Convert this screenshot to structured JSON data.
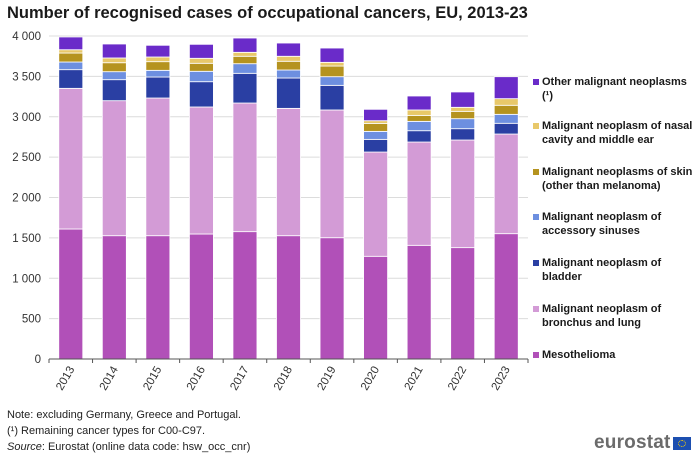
{
  "title": "Number of recognised cases of occupational cancers, EU, 2013-23",
  "notes": {
    "line1": "Note: excluding Germany, Greece and Portugal.",
    "line2": "(¹) Remaining cancer types for C00-C97.",
    "source_label": "Source",
    "source_text": ": Eurostat (online data code: hsw_occ_cnr)"
  },
  "logo": {
    "text": "eurostat",
    "icon": "eu-flag-icon"
  },
  "chart_data": {
    "type": "bar",
    "stacked": true,
    "title": "Number of recognised cases of occupational cancers, EU, 2013-23",
    "xlabel": "",
    "ylabel": "",
    "ylim": [
      0,
      4000
    ],
    "yticks": [
      0,
      500,
      1000,
      1500,
      2000,
      2500,
      3000,
      3500,
      4000
    ],
    "ytick_labels": [
      "0",
      "500",
      "1 000",
      "1 500",
      "2 000",
      "2 500",
      "3 000",
      "3 500",
      "4 000"
    ],
    "grid": true,
    "legend_position": "right",
    "categories": [
      "2013",
      "2014",
      "2015",
      "2016",
      "2017",
      "2018",
      "2019",
      "2020",
      "2021",
      "2022",
      "2023"
    ],
    "series": [
      {
        "name": "Mesothelioma",
        "color": "#b150b8",
        "values": [
          1610,
          1527,
          1527,
          1548,
          1577,
          1527,
          1502,
          1272,
          1408,
          1379,
          1552
        ]
      },
      {
        "name": "Malignant neoplasm of bronchus and lung",
        "color": "#d39bd6",
        "values": [
          1742,
          1672,
          1705,
          1573,
          1593,
          1577,
          1582,
          1291,
          1279,
          1333,
          1234
        ]
      },
      {
        "name": "Malignant neoplasm of bladder",
        "color": "#2a3fa3",
        "values": [
          231,
          260,
          260,
          313,
          368,
          376,
          305,
          157,
          140,
          140,
          133
        ]
      },
      {
        "name": "Malignant neoplasm of accessory sinuses",
        "color": "#6d8fe0",
        "values": [
          95,
          99,
          83,
          129,
          119,
          99,
          107,
          99,
          116,
          124,
          111
        ]
      },
      {
        "name": "Malignant neoplasms of skin (other than melanoma)",
        "color": "#b5931f",
        "values": [
          111,
          111,
          107,
          99,
          92,
          108,
          132,
          99,
          74,
          91,
          112
        ]
      },
      {
        "name": "Malignant neoplasm of nasal cavity and middle ear",
        "color": "#e8c86a",
        "values": [
          41,
          59,
          58,
          62,
          49,
          62,
          46,
          33,
          67,
          50,
          82
        ]
      },
      {
        "name": "Other malignant neoplasms (¹)",
        "color": "#6a2bc9",
        "values": [
          158,
          173,
          145,
          173,
          177,
          164,
          177,
          141,
          173,
          190,
          272
        ]
      }
    ],
    "legend": [
      "Other malignant neoplasms (¹)",
      "Malignant neoplasm of nasal cavity and middle ear",
      "Malignant neoplasms of skin (other than melanoma)",
      "Malignant neoplasm of accessory sinuses",
      "Malignant neoplasm of bladder",
      "Malignant neoplasm of bronchus and lung",
      "Mesothelioma"
    ]
  }
}
